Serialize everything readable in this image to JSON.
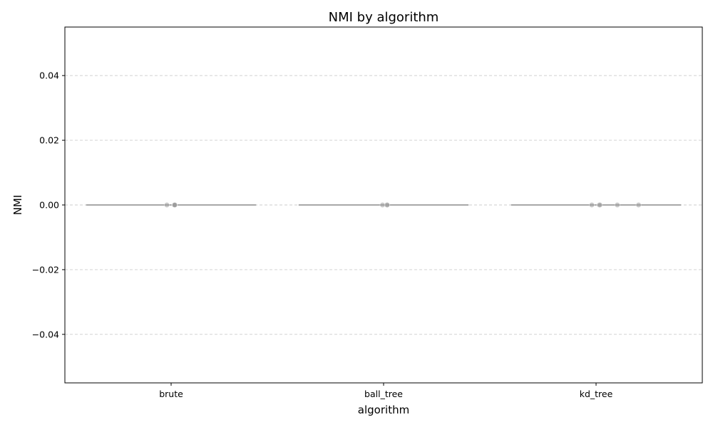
{
  "chart_data": {
    "type": "box",
    "title": "NMI by algorithm",
    "xlabel": "algorithm",
    "ylabel": "NMI",
    "categories": [
      "brute",
      "ball_tree",
      "kd_tree"
    ],
    "ylim": [
      -0.055,
      0.055
    ],
    "yticks": [
      0.04,
      0.02,
      0.0,
      -0.02,
      -0.04
    ],
    "ytick_labels": [
      "0.04",
      "0.02",
      "0.00",
      "−0.02",
      "−0.04"
    ],
    "grid": "y-dashed",
    "box_stats": [
      {
        "category": "brute",
        "min": 0.0,
        "q1": 0.0,
        "median": 0.0,
        "q3": 0.0,
        "max": 0.0
      },
      {
        "category": "ball_tree",
        "min": 0.0,
        "q1": 0.0,
        "median": 0.0,
        "q3": 0.0,
        "max": 0.0
      },
      {
        "category": "kd_tree",
        "min": 0.0,
        "q1": 0.0,
        "median": 0.0,
        "q3": 0.0,
        "max": 0.0
      }
    ],
    "points": [
      {
        "category": "brute",
        "values": [
          0.0,
          0.0,
          0.0,
          0.0,
          0.0
        ]
      },
      {
        "category": "ball_tree",
        "values": [
          0.0,
          0.0,
          0.0
        ]
      },
      {
        "category": "kd_tree",
        "values": [
          0.0,
          0.0,
          0.0,
          0.0,
          0.0
        ]
      }
    ],
    "colors": {
      "box_line": "#737373",
      "point": "#9a9a9a",
      "grid": "#cccccc",
      "axis": "#000000"
    }
  }
}
